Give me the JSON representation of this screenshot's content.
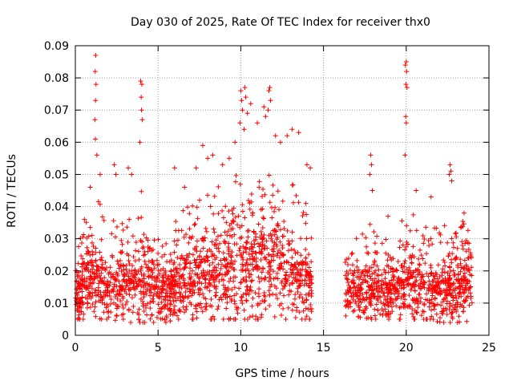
{
  "chart_data": {
    "type": "scatter",
    "title": "Day 030 of 2025, Rate Of TEC Index for receiver thx0",
    "xlabel": "GPS time / hours",
    "ylabel": "ROTI / TECUs",
    "xlim": [
      0,
      25
    ],
    "ylim": [
      0,
      0.09
    ],
    "xticks": [
      "0",
      "5",
      "10",
      "15",
      "20",
      "25"
    ],
    "yticks": [
      "0",
      "0.01",
      "0.02",
      "0.03",
      "0.04",
      "0.05",
      "0.06",
      "0.07",
      "0.08",
      "0.09"
    ],
    "grid": true,
    "marker": "+",
    "color": "#ff0000",
    "data_gap_hours": [
      14.3,
      16.3
    ],
    "envelope": {
      "x": [
        0,
        0.5,
        1,
        1.3,
        1.7,
        2.2,
        2.8,
        3.3,
        4,
        4.5,
        5,
        5.5,
        6,
        6.5,
        7,
        7.5,
        8,
        8.5,
        9,
        9.5,
        10,
        10.5,
        11,
        11.5,
        12,
        12.5,
        13,
        13.5,
        14.3,
        16.3,
        17,
        17.5,
        18,
        18.5,
        19,
        19.5,
        20,
        20.5,
        21,
        21.5,
        22,
        22.5,
        23,
        23.5,
        24
      ],
      "y_low": [
        0.005,
        0.005,
        0.005,
        0.005,
        0.005,
        0.005,
        0.004,
        0.004,
        0.004,
        0.004,
        0.004,
        0.004,
        0.005,
        0.005,
        0.005,
        0.005,
        0.005,
        0.005,
        0.005,
        0.005,
        0.005,
        0.005,
        0.005,
        0.005,
        0.005,
        0.005,
        0.005,
        0.005,
        0.005,
        0.006,
        0.006,
        0.005,
        0.005,
        0.005,
        0.005,
        0.005,
        0.005,
        0.005,
        0.005,
        0.005,
        0.004,
        0.004,
        0.004,
        0.004,
        0.005
      ],
      "y_high": [
        0.028,
        0.032,
        0.042,
        0.045,
        0.038,
        0.035,
        0.04,
        0.036,
        0.045,
        0.038,
        0.031,
        0.03,
        0.035,
        0.04,
        0.04,
        0.045,
        0.045,
        0.048,
        0.045,
        0.048,
        0.052,
        0.05,
        0.053,
        0.05,
        0.052,
        0.05,
        0.048,
        0.045,
        0.04,
        0.028,
        0.032,
        0.032,
        0.036,
        0.03,
        0.03,
        0.035,
        0.04,
        0.038,
        0.036,
        0.035,
        0.033,
        0.036,
        0.033,
        0.036,
        0.034
      ],
      "y_mode": [
        0.014,
        0.014,
        0.016,
        0.017,
        0.016,
        0.015,
        0.014,
        0.014,
        0.016,
        0.015,
        0.013,
        0.013,
        0.014,
        0.015,
        0.016,
        0.017,
        0.018,
        0.018,
        0.019,
        0.019,
        0.02,
        0.02,
        0.021,
        0.02,
        0.02,
        0.019,
        0.018,
        0.017,
        0.015,
        0.013,
        0.013,
        0.013,
        0.014,
        0.013,
        0.013,
        0.014,
        0.015,
        0.015,
        0.015,
        0.014,
        0.013,
        0.014,
        0.014,
        0.014,
        0.014
      ]
    },
    "outliers": [
      [
        1.23,
        0.087
      ],
      [
        1.2,
        0.082
      ],
      [
        1.25,
        0.078
      ],
      [
        1.22,
        0.073
      ],
      [
        1.18,
        0.067
      ],
      [
        1.21,
        0.061
      ],
      [
        1.3,
        0.056
      ],
      [
        3.95,
        0.079
      ],
      [
        4.02,
        0.078
      ],
      [
        3.98,
        0.074
      ],
      [
        4.0,
        0.07
      ],
      [
        4.05,
        0.067
      ],
      [
        3.9,
        0.06
      ],
      [
        10.0,
        0.076
      ],
      [
        10.25,
        0.077
      ],
      [
        10.05,
        0.073
      ],
      [
        10.3,
        0.074
      ],
      [
        10.1,
        0.07
      ],
      [
        9.95,
        0.066
      ],
      [
        10.2,
        0.064
      ],
      [
        10.6,
        0.072
      ],
      [
        10.4,
        0.069
      ],
      [
        11.0,
        0.066
      ],
      [
        11.4,
        0.071
      ],
      [
        11.5,
        0.068
      ],
      [
        11.75,
        0.077
      ],
      [
        11.7,
        0.076
      ],
      [
        11.8,
        0.073
      ],
      [
        11.65,
        0.07
      ],
      [
        9.65,
        0.06
      ],
      [
        12.8,
        0.062
      ],
      [
        13.1,
        0.064
      ],
      [
        13.5,
        0.063
      ],
      [
        12.4,
        0.06
      ],
      [
        12.1,
        0.062
      ],
      [
        17.85,
        0.056
      ],
      [
        17.9,
        0.053
      ],
      [
        17.8,
        0.05
      ],
      [
        17.95,
        0.045
      ],
      [
        20.0,
        0.085
      ],
      [
        19.95,
        0.084
      ],
      [
        20.02,
        0.082
      ],
      [
        19.98,
        0.078
      ],
      [
        20.05,
        0.077
      ],
      [
        19.97,
        0.068
      ],
      [
        20.0,
        0.066
      ],
      [
        19.93,
        0.056
      ],
      [
        22.65,
        0.053
      ],
      [
        22.7,
        0.051
      ],
      [
        22.6,
        0.05
      ],
      [
        22.75,
        0.048
      ],
      [
        2.35,
        0.053
      ],
      [
        2.45,
        0.05
      ],
      [
        3.2,
        0.052
      ],
      [
        3.4,
        0.05
      ],
      [
        6.0,
        0.052
      ],
      [
        6.6,
        0.046
      ],
      [
        7.3,
        0.052
      ],
      [
        7.7,
        0.059
      ],
      [
        8.0,
        0.055
      ],
      [
        8.3,
        0.056
      ],
      [
        8.9,
        0.053
      ],
      [
        9.3,
        0.055
      ],
      [
        14.0,
        0.053
      ],
      [
        14.2,
        0.052
      ],
      [
        0.55,
        0.036
      ],
      [
        0.9,
        0.046
      ],
      [
        1.5,
        0.05
      ],
      [
        18.9,
        0.037
      ],
      [
        20.6,
        0.045
      ],
      [
        21.5,
        0.043
      ],
      [
        23.5,
        0.038
      ]
    ]
  }
}
